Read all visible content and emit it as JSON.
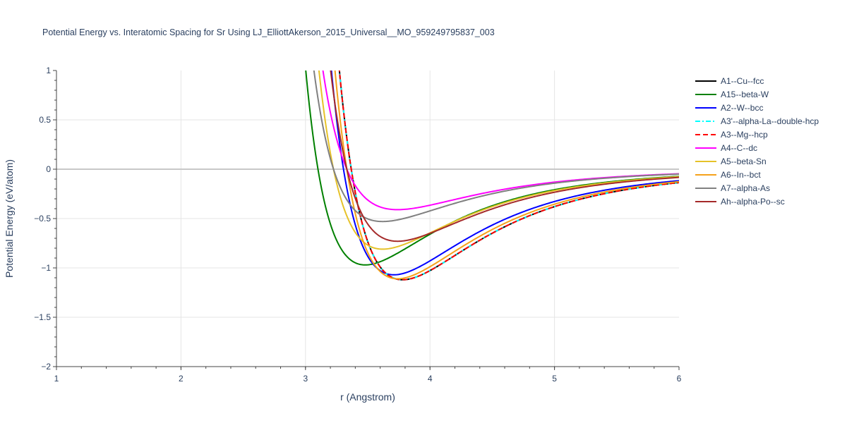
{
  "chart_data": {
    "type": "line",
    "title": "Potential Energy vs. Interatomic Spacing for Sr Using LJ_ElliottAkerson_2015_Universal__MO_959249795837_003",
    "xlabel": "r (Angstrom)",
    "ylabel": "Potential Energy (eV/atom)",
    "xlim": [
      1,
      6
    ],
    "ylim": [
      -2,
      1
    ],
    "x_ticks": [
      "1",
      "2",
      "3",
      "4",
      "5",
      "6"
    ],
    "y_ticks": [
      "1",
      "0.5",
      "0",
      "−0.5",
      "−1",
      "−1.5",
      "−2"
    ],
    "grid": true,
    "legend_position": "right",
    "series": [
      {
        "name": "A1--Cu--fcc",
        "color": "#000000",
        "dash": "solid",
        "r0": 3.78,
        "emin": -1.12
      },
      {
        "name": "A15--beta-W",
        "color": "#008000",
        "dash": "solid",
        "r0": 3.48,
        "emin": -0.97
      },
      {
        "name": "A2--W--bcc",
        "color": "#0000ff",
        "dash": "solid",
        "r0": 3.71,
        "emin": -1.07
      },
      {
        "name": "A3'--alpha-La--double-hcp",
        "color": "#00ffff",
        "dash": "dashdot",
        "r0": 3.78,
        "emin": -1.12
      },
      {
        "name": "A3--Mg--hcp",
        "color": "#ff0000",
        "dash": "dash",
        "r0": 3.78,
        "emin": -1.12
      },
      {
        "name": "A4--C--dc",
        "color": "#ff00ff",
        "dash": "solid",
        "r0": 3.74,
        "emin": -0.41
      },
      {
        "name": "A5--beta-Sn",
        "color": "#e6c229",
        "dash": "solid",
        "r0": 3.62,
        "emin": -0.81
      },
      {
        "name": "A6--In--bct",
        "color": "#f5a21b",
        "dash": "solid",
        "r0": 3.74,
        "emin": -1.11
      },
      {
        "name": "A7--alpha-As",
        "color": "#808080",
        "dash": "solid",
        "r0": 3.62,
        "emin": -0.53
      },
      {
        "name": "Ah--alpha-Po--sc",
        "color": "#a52a2a",
        "dash": "solid",
        "r0": 3.74,
        "emin": -0.73
      }
    ]
  }
}
